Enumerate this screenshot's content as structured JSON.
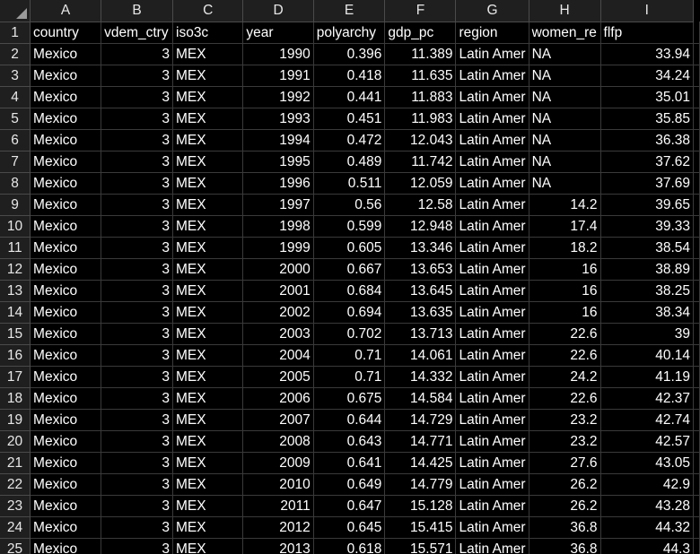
{
  "columns": [
    "A",
    "B",
    "C",
    "D",
    "E",
    "F",
    "G",
    "H",
    "I"
  ],
  "rows": [
    {
      "n": "1",
      "cells": [
        "country",
        "vdem_ctry",
        "iso3c",
        "year",
        "polyarchy",
        "gdp_pc",
        "region",
        "women_re",
        "flfp"
      ]
    },
    {
      "n": "2",
      "cells": [
        "Mexico",
        "3",
        "MEX",
        "1990",
        "0.396",
        "11.389",
        "Latin Amer",
        "NA",
        "33.94"
      ]
    },
    {
      "n": "3",
      "cells": [
        "Mexico",
        "3",
        "MEX",
        "1991",
        "0.418",
        "11.635",
        "Latin Amer",
        "NA",
        "34.24"
      ]
    },
    {
      "n": "4",
      "cells": [
        "Mexico",
        "3",
        "MEX",
        "1992",
        "0.441",
        "11.883",
        "Latin Amer",
        "NA",
        "35.01"
      ]
    },
    {
      "n": "5",
      "cells": [
        "Mexico",
        "3",
        "MEX",
        "1993",
        "0.451",
        "11.983",
        "Latin Amer",
        "NA",
        "35.85"
      ]
    },
    {
      "n": "6",
      "cells": [
        "Mexico",
        "3",
        "MEX",
        "1994",
        "0.472",
        "12.043",
        "Latin Amer",
        "NA",
        "36.38"
      ]
    },
    {
      "n": "7",
      "cells": [
        "Mexico",
        "3",
        "MEX",
        "1995",
        "0.489",
        "11.742",
        "Latin Amer",
        "NA",
        "37.62"
      ]
    },
    {
      "n": "8",
      "cells": [
        "Mexico",
        "3",
        "MEX",
        "1996",
        "0.511",
        "12.059",
        "Latin Amer",
        "NA",
        "37.69"
      ]
    },
    {
      "n": "9",
      "cells": [
        "Mexico",
        "3",
        "MEX",
        "1997",
        "0.56",
        "12.58",
        "Latin Amer",
        "14.2",
        "39.65"
      ]
    },
    {
      "n": "10",
      "cells": [
        "Mexico",
        "3",
        "MEX",
        "1998",
        "0.599",
        "12.948",
        "Latin Amer",
        "17.4",
        "39.33"
      ]
    },
    {
      "n": "11",
      "cells": [
        "Mexico",
        "3",
        "MEX",
        "1999",
        "0.605",
        "13.346",
        "Latin Amer",
        "18.2",
        "38.54"
      ]
    },
    {
      "n": "12",
      "cells": [
        "Mexico",
        "3",
        "MEX",
        "2000",
        "0.667",
        "13.653",
        "Latin Amer",
        "16",
        "38.89"
      ]
    },
    {
      "n": "13",
      "cells": [
        "Mexico",
        "3",
        "MEX",
        "2001",
        "0.684",
        "13.645",
        "Latin Amer",
        "16",
        "38.25"
      ]
    },
    {
      "n": "14",
      "cells": [
        "Mexico",
        "3",
        "MEX",
        "2002",
        "0.694",
        "13.635",
        "Latin Amer",
        "16",
        "38.34"
      ]
    },
    {
      "n": "15",
      "cells": [
        "Mexico",
        "3",
        "MEX",
        "2003",
        "0.702",
        "13.713",
        "Latin Amer",
        "22.6",
        "39"
      ]
    },
    {
      "n": "16",
      "cells": [
        "Mexico",
        "3",
        "MEX",
        "2004",
        "0.71",
        "14.061",
        "Latin Amer",
        "22.6",
        "40.14"
      ]
    },
    {
      "n": "17",
      "cells": [
        "Mexico",
        "3",
        "MEX",
        "2005",
        "0.71",
        "14.332",
        "Latin Amer",
        "24.2",
        "41.19"
      ]
    },
    {
      "n": "18",
      "cells": [
        "Mexico",
        "3",
        "MEX",
        "2006",
        "0.675",
        "14.584",
        "Latin Amer",
        "22.6",
        "42.37"
      ]
    },
    {
      "n": "19",
      "cells": [
        "Mexico",
        "3",
        "MEX",
        "2007",
        "0.644",
        "14.729",
        "Latin Amer",
        "23.2",
        "42.74"
      ]
    },
    {
      "n": "20",
      "cells": [
        "Mexico",
        "3",
        "MEX",
        "2008",
        "0.643",
        "14.771",
        "Latin Amer",
        "23.2",
        "42.57"
      ]
    },
    {
      "n": "21",
      "cells": [
        "Mexico",
        "3",
        "MEX",
        "2009",
        "0.641",
        "14.425",
        "Latin Amer",
        "27.6",
        "43.05"
      ]
    },
    {
      "n": "22",
      "cells": [
        "Mexico",
        "3",
        "MEX",
        "2010",
        "0.649",
        "14.779",
        "Latin Amer",
        "26.2",
        "42.9"
      ]
    },
    {
      "n": "23",
      "cells": [
        "Mexico",
        "3",
        "MEX",
        "2011",
        "0.647",
        "15.128",
        "Latin Amer",
        "26.2",
        "43.28"
      ]
    },
    {
      "n": "24",
      "cells": [
        "Mexico",
        "3",
        "MEX",
        "2012",
        "0.645",
        "15.415",
        "Latin Amer",
        "36.8",
        "44.32"
      ]
    },
    {
      "n": "25",
      "cells": [
        "Mexico",
        "3",
        "MEX",
        "2013",
        "0.618",
        "15.571",
        "Latin Amer",
        "36.8",
        "44.3"
      ]
    }
  ]
}
